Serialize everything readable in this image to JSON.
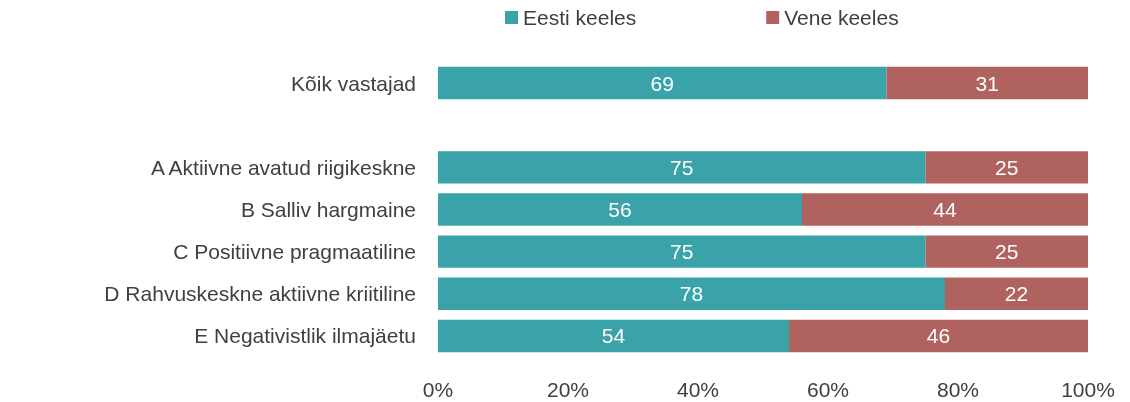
{
  "chart_data": {
    "type": "bar",
    "orientation": "horizontal",
    "stacked": true,
    "categories": [
      "Kõik vastajad",
      null,
      "A Aktiivne avatud riigikeskne",
      "B Salliv hargmaine",
      "C Positiivne pragmaatiline",
      "D Rahvuskeskne aktiivne kriitiline",
      "E Negativistlik ilmajäetu"
    ],
    "series": [
      {
        "name": "Eesti keeles",
        "color": "#3aa3aa",
        "values": [
          69,
          null,
          75,
          56,
          75,
          78,
          54
        ]
      },
      {
        "name": "Vene keeles",
        "color": "#b0625f",
        "values": [
          31,
          null,
          25,
          44,
          25,
          22,
          46
        ]
      }
    ],
    "xlim": [
      0,
      100
    ],
    "xticks": [
      {
        "value": 0,
        "label": "0%"
      },
      {
        "value": 20,
        "label": "20%"
      },
      {
        "value": 40,
        "label": "40%"
      },
      {
        "value": 60,
        "label": "60%"
      },
      {
        "value": 80,
        "label": "80%"
      },
      {
        "value": 100,
        "label": "100%"
      }
    ],
    "data_labels": true,
    "legend": "top",
    "grid": false
  }
}
